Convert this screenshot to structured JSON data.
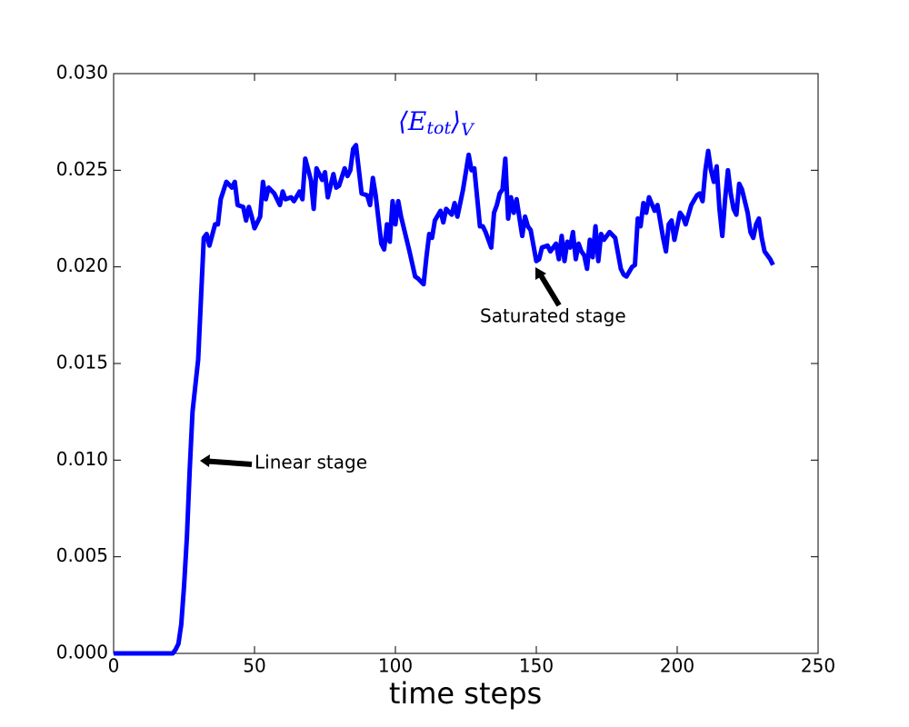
{
  "chart_data": {
    "type": "line",
    "xlabel": "time steps",
    "x": [
      0,
      10,
      20,
      21,
      22,
      23,
      24,
      25,
      26,
      27,
      28,
      30,
      32,
      33,
      34,
      36,
      37,
      38,
      40,
      42,
      43,
      44,
      46,
      47,
      48,
      49,
      50,
      52,
      53,
      54,
      55,
      57,
      59,
      60,
      61,
      63,
      64,
      66,
      67,
      68,
      70,
      71,
      72,
      74,
      75,
      76,
      78,
      79,
      80,
      82,
      83,
      84,
      85,
      86,
      88,
      90,
      91,
      92,
      93,
      95,
      96,
      97,
      98,
      99,
      100,
      101,
      102,
      103,
      105,
      107,
      108,
      110,
      111,
      112,
      113,
      114,
      116,
      117,
      118,
      120,
      121,
      122,
      124,
      126,
      127,
      128,
      130,
      131,
      132,
      134,
      135,
      136,
      137,
      138,
      139,
      140,
      141,
      142,
      143,
      145,
      146,
      147,
      148,
      150,
      151,
      152,
      154,
      155,
      157,
      158,
      159,
      160,
      161,
      162,
      163,
      164,
      165,
      166,
      167,
      168,
      169,
      170,
      171,
      172,
      173,
      174,
      176,
      178,
      180,
      181,
      182,
      184,
      185,
      186,
      187,
      188,
      189,
      190,
      192,
      193,
      195,
      196,
      197,
      198,
      199,
      201,
      202,
      203,
      205,
      207,
      208,
      209,
      210,
      211,
      212,
      213,
      214,
      215,
      216,
      217,
      218,
      219,
      220,
      221,
      222,
      223,
      225,
      226,
      227,
      228,
      229,
      230,
      231,
      233,
      234
    ],
    "series": [
      {
        "label_parts": [
          "⟨E",
          "tot",
          "⟩",
          "V"
        ],
        "color": "#0000ff",
        "values": [
          0,
          0,
          0,
          0,
          0.0002,
          0.0005,
          0.0015,
          0.0035,
          0.006,
          0.0095,
          0.0125,
          0.0152,
          0.0215,
          0.0217,
          0.0211,
          0.0222,
          0.0222,
          0.0235,
          0.0244,
          0.0241,
          0.0244,
          0.0232,
          0.0231,
          0.0224,
          0.0231,
          0.0226,
          0.022,
          0.0226,
          0.0244,
          0.0235,
          0.0241,
          0.0238,
          0.0232,
          0.0239,
          0.0235,
          0.0236,
          0.0234,
          0.0239,
          0.0235,
          0.0256,
          0.0245,
          0.023,
          0.0251,
          0.0245,
          0.0249,
          0.0236,
          0.0248,
          0.0241,
          0.0242,
          0.0251,
          0.0247,
          0.025,
          0.0261,
          0.0263,
          0.0238,
          0.0237,
          0.0232,
          0.0246,
          0.0237,
          0.0212,
          0.0209,
          0.0222,
          0.0213,
          0.0234,
          0.0222,
          0.0234,
          0.0226,
          0.022,
          0.0208,
          0.0195,
          0.0194,
          0.0191,
          0.0205,
          0.0217,
          0.0215,
          0.0224,
          0.0229,
          0.0223,
          0.023,
          0.0227,
          0.0233,
          0.0226,
          0.024,
          0.0258,
          0.025,
          0.0251,
          0.0221,
          0.0221,
          0.0218,
          0.021,
          0.0228,
          0.0232,
          0.0238,
          0.024,
          0.0256,
          0.0225,
          0.0236,
          0.0228,
          0.0235,
          0.0216,
          0.0226,
          0.0221,
          0.0219,
          0.0203,
          0.0204,
          0.021,
          0.0211,
          0.0208,
          0.0212,
          0.0204,
          0.0216,
          0.0203,
          0.0213,
          0.021,
          0.0218,
          0.0204,
          0.0212,
          0.0208,
          0.0206,
          0.0199,
          0.0214,
          0.0205,
          0.0221,
          0.0203,
          0.0217,
          0.0214,
          0.0218,
          0.0215,
          0.0199,
          0.0196,
          0.0195,
          0.02,
          0.0201,
          0.0225,
          0.0221,
          0.0233,
          0.0228,
          0.0236,
          0.0229,
          0.0232,
          0.0215,
          0.0208,
          0.0222,
          0.0224,
          0.0214,
          0.0228,
          0.0226,
          0.0222,
          0.0232,
          0.0237,
          0.0238,
          0.0234,
          0.025,
          0.026,
          0.025,
          0.0244,
          0.0252,
          0.023,
          0.0216,
          0.0235,
          0.025,
          0.0238,
          0.023,
          0.0227,
          0.0243,
          0.024,
          0.0228,
          0.0218,
          0.0215,
          0.0222,
          0.0225,
          0.0215,
          0.0208,
          0.0204,
          0.0201
        ]
      }
    ],
    "xlim": [
      0,
      250
    ],
    "xticks": [
      0,
      50,
      100,
      150,
      200,
      250
    ],
    "ylim": [
      0,
      0.03
    ],
    "yticks": [
      {
        "value": 0,
        "label": "0.000"
      },
      {
        "value": 0.005,
        "label": "0.005"
      },
      {
        "value": 0.01,
        "label": "0.010"
      },
      {
        "value": 0.015,
        "label": "0.015"
      },
      {
        "value": 0.02,
        "label": "0.020"
      },
      {
        "value": 0.025,
        "label": "0.025"
      },
      {
        "value": 0.03,
        "label": "0.030"
      }
    ],
    "annotations": [
      "Linear stage",
      "Saturated stage"
    ]
  }
}
